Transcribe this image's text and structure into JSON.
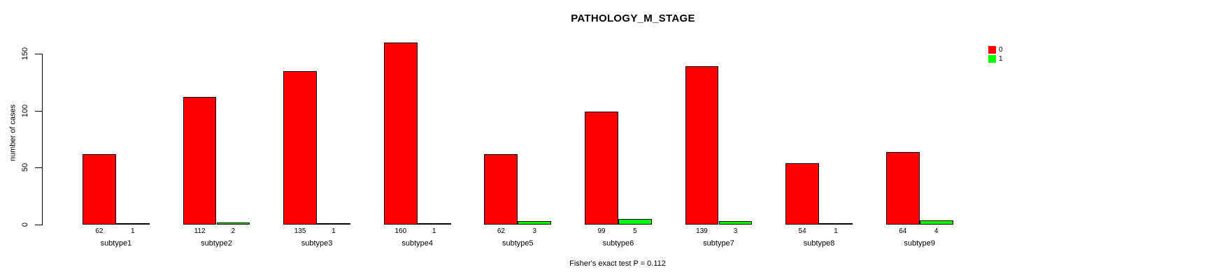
{
  "chart_data": {
    "type": "bar",
    "title": "PATHOLOGY_M_STAGE",
    "ylabel": "number of cases",
    "xlabel": "",
    "categories": [
      "subtype1",
      "subtype2",
      "subtype3",
      "subtype4",
      "subtype5",
      "subtype6",
      "subtype7",
      "subtype8",
      "subtype9"
    ],
    "series": [
      {
        "name": "0",
        "color": "#ff0000",
        "values": [
          62,
          112,
          135,
          160,
          62,
          99,
          139,
          54,
          64
        ]
      },
      {
        "name": "1",
        "color": "#00ff00",
        "values": [
          1,
          2,
          1,
          1,
          3,
          5,
          3,
          1,
          4
        ]
      }
    ],
    "yticks": [
      0,
      50,
      100,
      150
    ],
    "ylim": [
      0,
      160
    ],
    "grid": false,
    "legend_position": "top-right",
    "bar_value_labels_shown": true,
    "caption": "Fisher's exact test P = 0.112"
  }
}
